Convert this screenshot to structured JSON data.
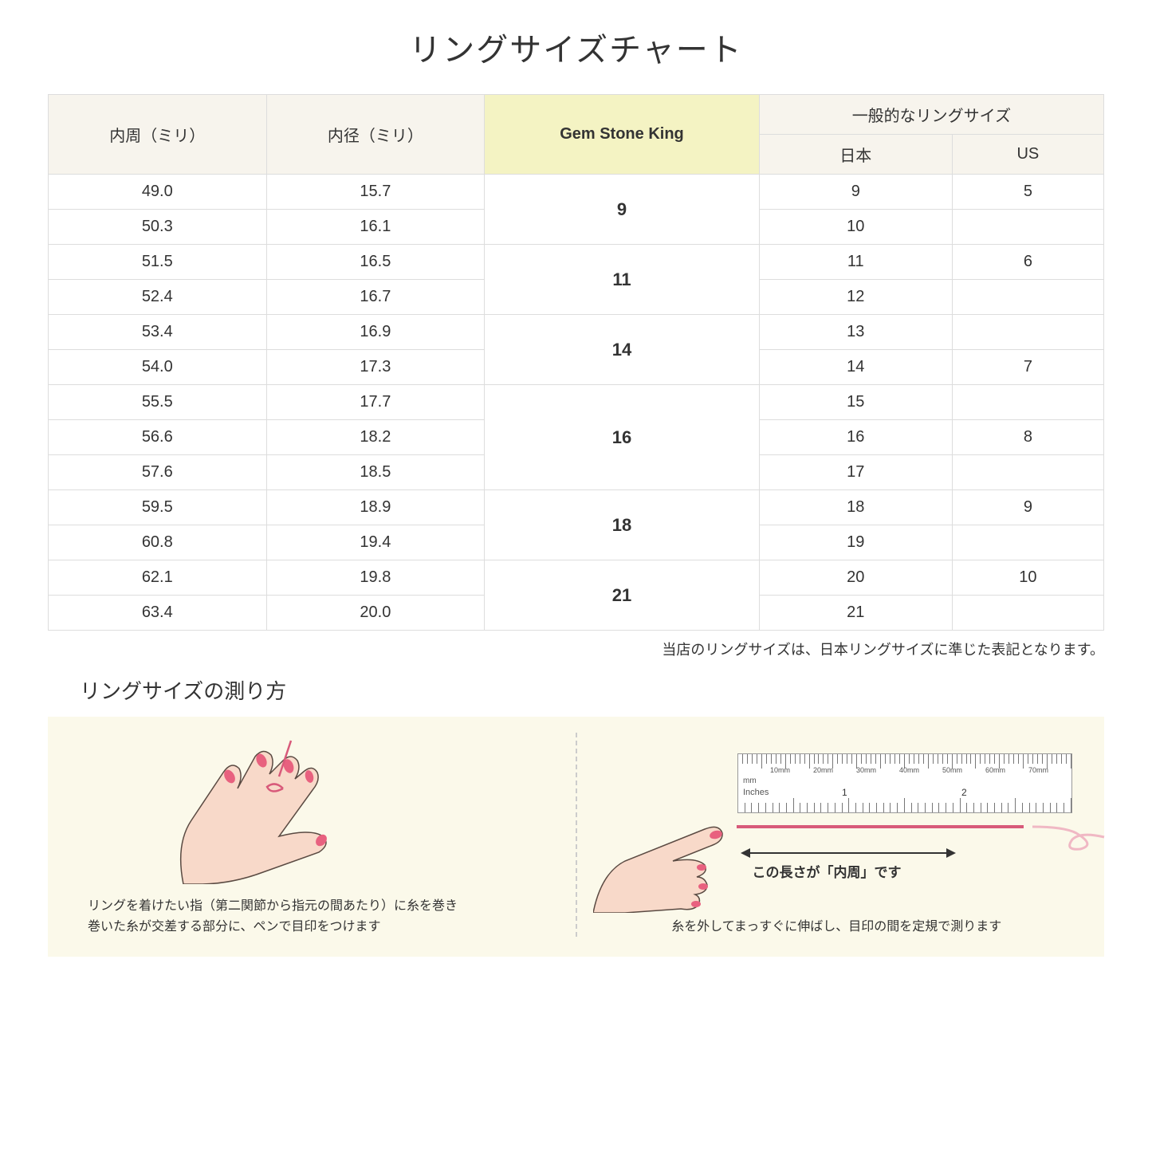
{
  "title": "リングサイズチャート",
  "table": {
    "headers": {
      "circumference": "内周（ミリ）",
      "diameter": "内径（ミリ）",
      "gsk": "Gem Stone King",
      "general": "一般的なリングサイズ",
      "japan": "日本",
      "us": "US"
    },
    "groups": [
      {
        "gsk": "9",
        "rows": [
          {
            "c": "49.0",
            "d": "15.7",
            "jp": "9",
            "us": "5"
          },
          {
            "c": "50.3",
            "d": "16.1",
            "jp": "10",
            "us": ""
          }
        ]
      },
      {
        "gsk": "11",
        "rows": [
          {
            "c": "51.5",
            "d": "16.5",
            "jp": "11",
            "us": "6"
          },
          {
            "c": "52.4",
            "d": "16.7",
            "jp": "12",
            "us": ""
          }
        ]
      },
      {
        "gsk": "14",
        "rows": [
          {
            "c": "53.4",
            "d": "16.9",
            "jp": "13",
            "us": ""
          },
          {
            "c": "54.0",
            "d": "17.3",
            "jp": "14",
            "us": "7"
          }
        ]
      },
      {
        "gsk": "16",
        "rows": [
          {
            "c": "55.5",
            "d": "17.7",
            "jp": "15",
            "us": ""
          },
          {
            "c": "56.6",
            "d": "18.2",
            "jp": "16",
            "us": "8"
          },
          {
            "c": "57.6",
            "d": "18.5",
            "jp": "17",
            "us": ""
          }
        ]
      },
      {
        "gsk": "18",
        "rows": [
          {
            "c": "59.5",
            "d": "18.9",
            "jp": "18",
            "us": "9"
          },
          {
            "c": "60.8",
            "d": "19.4",
            "jp": "19",
            "us": ""
          }
        ]
      },
      {
        "gsk": "21",
        "rows": [
          {
            "c": "62.1",
            "d": "19.8",
            "jp": "20",
            "us": "10"
          },
          {
            "c": "63.4",
            "d": "20.0",
            "jp": "21",
            "us": ""
          }
        ]
      }
    ]
  },
  "note": "当店のリングサイズは、日本リングサイズに準じた表記となります。",
  "measure_title": "リングサイズの測り方",
  "left_caption": "リングを着けたい指（第二関節から指元の間あたり）に糸を巻き\n巻いた糸が交差する部分に、ペンで目印をつけます",
  "right_caption": "糸を外してまっすぐに伸ばし、目印の間を定規で測ります",
  "arrow_label": "この長さが「内周」です",
  "ruler": {
    "mm_label": "mm",
    "in_label": "Inches",
    "mm_marks": [
      "10mm",
      "20mm",
      "30mm",
      "40mm",
      "50mm",
      "60mm",
      "70mm"
    ],
    "in1": "1",
    "in2": "2"
  },
  "colors": {
    "header_bg": "#f7f4ed",
    "highlight_bg": "#f4f3c3",
    "guide_bg": "#fbf9ea",
    "thread": "#d85a7a",
    "skin": "#f8d9c9",
    "nail": "#e8617f"
  }
}
